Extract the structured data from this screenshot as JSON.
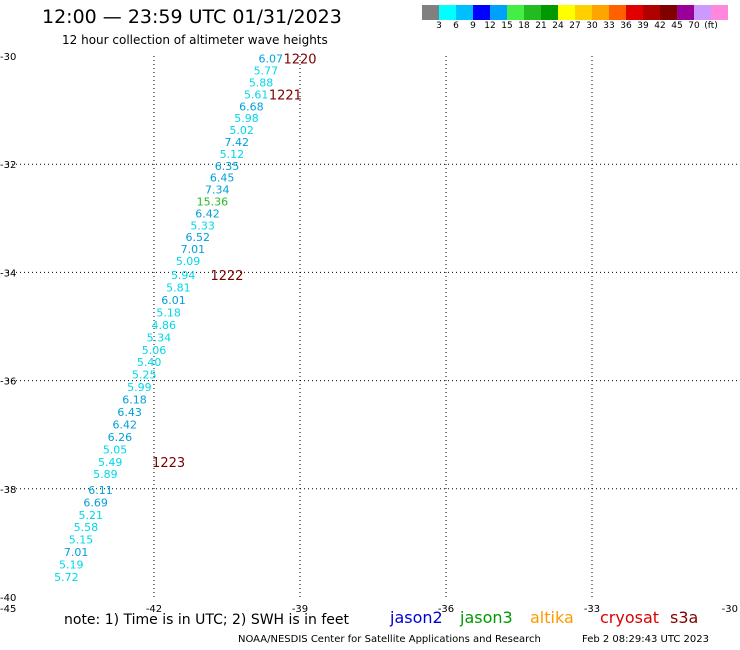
{
  "title": "12:00 — 23:59 UTC 01/31/2023",
  "subtitle": "12 hour collection of altimeter wave heights",
  "legend": {
    "colors": [
      "#808080",
      "#00ffff",
      "#00bfff",
      "#0000ff",
      "#00a0ff",
      "#44ee44",
      "#22bb22",
      "#009900",
      "#ffff00",
      "#ffd000",
      "#ffa500",
      "#ff6000",
      "#e00000",
      "#b00000",
      "#800000",
      "#990099",
      "#cc99ff",
      "#ff88dd",
      "#ffffff",
      "#000000"
    ],
    "labels": [
      "3",
      "6",
      "9",
      "12",
      "15",
      "18",
      "21",
      "24",
      "27",
      "30",
      "33",
      "36",
      "39",
      "42",
      "45",
      "70",
      "(ft)"
    ]
  },
  "chart_data": {
    "type": "scatter",
    "title": "12:00 — 23:59 UTC 01/31/2023",
    "subtitle": "12 hour collection of altimeter wave heights",
    "xlim": [
      -45,
      -30
    ],
    "ylim": [
      -40,
      -30
    ],
    "x_ticks": [
      "-45",
      "-42",
      "-39",
      "-36",
      "-33",
      "-30"
    ],
    "y_ticks": [
      "-30",
      "-32",
      "-34",
      "-36",
      "-38",
      "-40"
    ],
    "grid": true,
    "points": [
      {
        "lon": -39.6,
        "lat": -30.05,
        "swh": "6.07",
        "color": "#00a0d8"
      },
      {
        "lon": -39.7,
        "lat": -30.27,
        "swh": "5.77",
        "color": "#00d8e8"
      },
      {
        "lon": -39.8,
        "lat": -30.49,
        "swh": "5.88",
        "color": "#00d8e8"
      },
      {
        "lon": -39.9,
        "lat": -30.71,
        "swh": "5.61",
        "color": "#00d8e8"
      },
      {
        "lon": -40.0,
        "lat": -30.93,
        "swh": "6.68",
        "color": "#00a0d8"
      },
      {
        "lon": -40.1,
        "lat": -31.15,
        "swh": "5.98",
        "color": "#00d8e8"
      },
      {
        "lon": -40.2,
        "lat": -31.37,
        "swh": "5.02",
        "color": "#00d8e8"
      },
      {
        "lon": -40.3,
        "lat": -31.59,
        "swh": "7.42",
        "color": "#00a0d8"
      },
      {
        "lon": -40.4,
        "lat": -31.81,
        "swh": "5.12",
        "color": "#00d8e8"
      },
      {
        "lon": -40.5,
        "lat": -32.03,
        "swh": "6.35",
        "color": "#00a0d8"
      },
      {
        "lon": -40.6,
        "lat": -32.25,
        "swh": "6.45",
        "color": "#00a0d8"
      },
      {
        "lon": -40.7,
        "lat": -32.47,
        "swh": "7.34",
        "color": "#00a0d8"
      },
      {
        "lon": -40.8,
        "lat": -32.69,
        "swh": "15.36",
        "color": "#22bb22"
      },
      {
        "lon": -40.9,
        "lat": -32.91,
        "swh": "6.42",
        "color": "#00a0d8"
      },
      {
        "lon": -41.0,
        "lat": -33.13,
        "swh": "5.33",
        "color": "#00d8e8"
      },
      {
        "lon": -41.1,
        "lat": -33.35,
        "swh": "6.52",
        "color": "#00a0d8"
      },
      {
        "lon": -41.2,
        "lat": -33.57,
        "swh": "7.01",
        "color": "#00a0d8"
      },
      {
        "lon": -41.3,
        "lat": -33.79,
        "swh": "5.09",
        "color": "#00d8e8"
      },
      {
        "lon": -41.4,
        "lat": -34.05,
        "swh": "5.94",
        "color": "#00d8e8"
      },
      {
        "lon": -41.5,
        "lat": -34.28,
        "swh": "5.81",
        "color": "#00d8e8"
      },
      {
        "lon": -41.6,
        "lat": -34.51,
        "swh": "6.01",
        "color": "#00a0d8"
      },
      {
        "lon": -41.7,
        "lat": -34.74,
        "swh": "5.18",
        "color": "#00d8e8"
      },
      {
        "lon": -41.8,
        "lat": -34.97,
        "swh": "4.86",
        "color": "#00d8e8"
      },
      {
        "lon": -41.9,
        "lat": -35.2,
        "swh": "5.34",
        "color": "#00d8e8"
      },
      {
        "lon": -42.0,
        "lat": -35.43,
        "swh": "5.06",
        "color": "#00d8e8"
      },
      {
        "lon": -42.1,
        "lat": -35.66,
        "swh": "5.40",
        "color": "#00d8e8"
      },
      {
        "lon": -42.2,
        "lat": -35.89,
        "swh": "5.25",
        "color": "#00d8e8"
      },
      {
        "lon": -42.3,
        "lat": -36.12,
        "swh": "5.99",
        "color": "#00d8e8"
      },
      {
        "lon": -42.4,
        "lat": -36.35,
        "swh": "6.18",
        "color": "#00a0d8"
      },
      {
        "lon": -42.5,
        "lat": -36.58,
        "swh": "6.43",
        "color": "#00a0d8"
      },
      {
        "lon": -42.6,
        "lat": -36.81,
        "swh": "6.42",
        "color": "#00a0d8"
      },
      {
        "lon": -42.7,
        "lat": -37.04,
        "swh": "6.26",
        "color": "#00a0d8"
      },
      {
        "lon": -42.8,
        "lat": -37.27,
        "swh": "5.05",
        "color": "#00d8e8"
      },
      {
        "lon": -42.9,
        "lat": -37.5,
        "swh": "5.49",
        "color": "#00d8e8"
      },
      {
        "lon": -43.0,
        "lat": -37.73,
        "swh": "5.89",
        "color": "#00d8e8"
      },
      {
        "lon": -43.1,
        "lat": -38.02,
        "swh": "6.11",
        "color": "#00a0d8"
      },
      {
        "lon": -43.2,
        "lat": -38.25,
        "swh": "6.69",
        "color": "#00a0d8"
      },
      {
        "lon": -43.3,
        "lat": -38.48,
        "swh": "5.21",
        "color": "#00d8e8"
      },
      {
        "lon": -43.4,
        "lat": -38.71,
        "swh": "5.58",
        "color": "#00d8e8"
      },
      {
        "lon": -43.5,
        "lat": -38.94,
        "swh": "5.15",
        "color": "#00d8e8"
      },
      {
        "lon": -43.6,
        "lat": -39.17,
        "swh": "7.01",
        "color": "#00a0d8"
      },
      {
        "lon": -43.7,
        "lat": -39.4,
        "swh": "5.19",
        "color": "#00d8e8"
      },
      {
        "lon": -43.8,
        "lat": -39.63,
        "swh": "5.72",
        "color": "#00d8e8"
      }
    ],
    "time_labels": [
      {
        "lon": -39.0,
        "lat": -30.05,
        "text": "1220"
      },
      {
        "lon": -39.3,
        "lat": -30.71,
        "text": "1221"
      },
      {
        "lon": -40.5,
        "lat": -34.05,
        "text": "1222"
      },
      {
        "lon": -41.7,
        "lat": -37.5,
        "text": "1223"
      }
    ],
    "time_label_color": "#7a0000"
  },
  "note": "note:  1) Time is in UTC; 2) SWH is in feet",
  "satellites": [
    {
      "name": "jason2",
      "color": "#0000cc"
    },
    {
      "name": "jason3",
      "color": "#009900"
    },
    {
      "name": "altika",
      "color": "#ff9900"
    },
    {
      "name": "cryosat",
      "color": "#dd0000"
    },
    {
      "name": "s3a",
      "color": "#800000"
    }
  ],
  "credit": "NOAA/NESDIS Center for Satellite Applications and Research",
  "timestamp": "Feb  2 08:29:43 UTC 2023"
}
